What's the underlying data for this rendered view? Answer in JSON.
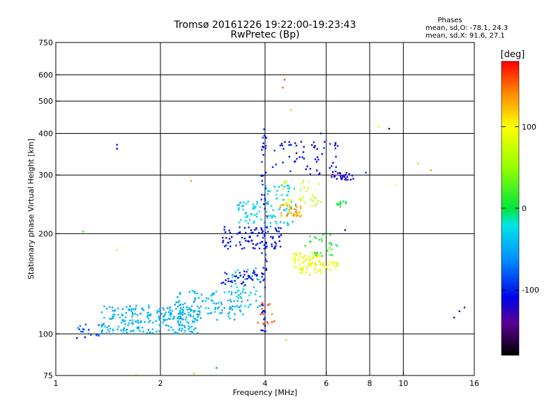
{
  "chart_data": {
    "type": "scatter",
    "title": "Tromsø 20161226 19:22:00-19:23:43",
    "subtitle": "RwPretec (Bp)",
    "stats": {
      "heading": "Phases",
      "line_o": "mean, sd,O: -78.1, 24.3",
      "line_x": "mean, sd,X:  91.6, 27.1"
    },
    "xlabel": "Frequency [MHz]",
    "ylabel": "Stationary phase Virtual Height [km]",
    "xscale": "log",
    "yscale": "log",
    "xlim": [
      1,
      16
    ],
    "ylim": [
      75,
      750
    ],
    "x_ticks": [
      {
        "value": 1,
        "label": "1"
      },
      {
        "value": 2,
        "label": "2"
      },
      {
        "value": 4,
        "label": "4"
      },
      {
        "value": 6,
        "label": "6"
      },
      {
        "value": 8,
        "label": "8"
      },
      {
        "value": 10,
        "label": "10"
      },
      {
        "value": 16,
        "label": "16"
      }
    ],
    "x_grid": [
      2,
      4,
      6,
      8,
      10
    ],
    "y_ticks": [
      {
        "value": 75,
        "label": "75"
      },
      {
        "value": 100,
        "label": "100"
      },
      {
        "value": 200,
        "label": "200"
      },
      {
        "value": 300,
        "label": "300"
      },
      {
        "value": 400,
        "label": "400"
      },
      {
        "value": 500,
        "label": "500"
      },
      {
        "value": 600,
        "label": "600"
      },
      {
        "value": 750,
        "label": "750"
      }
    ],
    "y_grid": [
      100,
      200,
      300,
      400,
      500,
      600
    ],
    "colorbar": {
      "unit": "[deg]",
      "range": [
        -180,
        180
      ],
      "ticks": [
        {
          "value": 100,
          "label": "100"
        },
        {
          "value": 0,
          "label": "0"
        },
        {
          "value": -100,
          "label": "-100"
        }
      ]
    },
    "clusters": [
      {
        "x": [
          1.35,
          2.6
        ],
        "y": [
          100,
          122
        ],
        "phase": [
          -50,
          -40
        ],
        "n": 260
      },
      {
        "x": [
          1.15,
          1.4
        ],
        "y": [
          97,
          108
        ],
        "phase": [
          -110,
          -60
        ],
        "n": 18
      },
      {
        "x": [
          2.2,
          3.5
        ],
        "y": [
          110,
          135
        ],
        "phase": [
          -60,
          -30
        ],
        "n": 110
      },
      {
        "x": [
          3.2,
          3.9
        ],
        "y": [
          120,
          160
        ],
        "phase": [
          -50,
          -20
        ],
        "n": 40
      },
      {
        "x": [
          3.3,
          3.9
        ],
        "y": [
          215,
          250
        ],
        "phase": [
          -40,
          -25
        ],
        "n": 40
      },
      {
        "x": [
          3.9,
          4.05
        ],
        "y": [
          100,
          420
        ],
        "phase": [
          -115,
          -90
        ],
        "n": 70
      },
      {
        "x": [
          3.0,
          4.5
        ],
        "y": [
          180,
          210
        ],
        "phase": [
          -115,
          -95
        ],
        "n": 90
      },
      {
        "x": [
          3.0,
          3.9
        ],
        "y": [
          140,
          155
        ],
        "phase": [
          -110,
          -95
        ],
        "n": 40
      },
      {
        "x": [
          4.0,
          4.9
        ],
        "y": [
          210,
          280
        ],
        "phase": [
          -45,
          -20
        ],
        "n": 60
      },
      {
        "x": [
          4.4,
          5.1
        ],
        "y": [
          225,
          245
        ],
        "phase": [
          110,
          145
        ],
        "n": 40
      },
      {
        "x": [
          4.8,
          5.8
        ],
        "y": [
          150,
          175
        ],
        "phase": [
          80,
          110
        ],
        "n": 80
      },
      {
        "x": [
          5.8,
          6.5
        ],
        "y": [
          155,
          165
        ],
        "phase": [
          80,
          100
        ],
        "n": 20
      },
      {
        "x": [
          4.2,
          6.5
        ],
        "y": [
          300,
          380
        ],
        "phase": [
          -120,
          -95
        ],
        "n": 60
      },
      {
        "x": [
          6.2,
          7.2
        ],
        "y": [
          290,
          305
        ],
        "phase": [
          -130,
          -100
        ],
        "n": 30
      },
      {
        "x": [
          6.4,
          6.9
        ],
        "y": [
          240,
          250
        ],
        "phase": [
          -5,
          10
        ],
        "n": 10
      },
      {
        "x": [
          5.2,
          6.5
        ],
        "y": [
          170,
          200
        ],
        "phase": [
          -10,
          30
        ],
        "n": 30
      },
      {
        "x": [
          4.5,
          5.8
        ],
        "y": [
          240,
          290
        ],
        "phase": [
          60,
          90
        ],
        "n": 35
      },
      {
        "x": [
          3.8,
          4.3
        ],
        "y": [
          105,
          125
        ],
        "phase": [
          140,
          165
        ],
        "n": 15
      }
    ],
    "points": [
      {
        "x": 1.5,
        "y": 370,
        "phase": -105
      },
      {
        "x": 1.5,
        "y": 360,
        "phase": -110
      },
      {
        "x": 1.2,
        "y": 203,
        "phase": 15
      },
      {
        "x": 1.5,
        "y": 179,
        "phase": 110
      },
      {
        "x": 2.45,
        "y": 288,
        "phase": 135
      },
      {
        "x": 4.75,
        "y": 470,
        "phase": 120
      },
      {
        "x": 4.5,
        "y": 549,
        "phase": 150
      },
      {
        "x": 4.55,
        "y": 580,
        "phase": 160
      },
      {
        "x": 9.1,
        "y": 413,
        "phase": -160
      },
      {
        "x": 8.5,
        "y": 420,
        "phase": 110
      },
      {
        "x": 11.0,
        "y": 325,
        "phase": 120
      },
      {
        "x": 12.0,
        "y": 310,
        "phase": 140
      },
      {
        "x": 14.5,
        "y": 117,
        "phase": -110
      },
      {
        "x": 14.0,
        "y": 112,
        "phase": -105
      },
      {
        "x": 15.0,
        "y": 120,
        "phase": -100
      },
      {
        "x": 2.9,
        "y": 79,
        "phase": -60
      },
      {
        "x": 1.7,
        "y": 75,
        "phase": 110
      },
      {
        "x": 2.5,
        "y": 76,
        "phase": 120
      },
      {
        "x": 9.5,
        "y": 280,
        "phase": 100
      },
      {
        "x": 6.8,
        "y": 205,
        "phase": -110
      },
      {
        "x": 5.8,
        "y": 400,
        "phase": -100
      },
      {
        "x": 4.6,
        "y": 96,
        "phase": 60
      },
      {
        "x": 7.8,
        "y": 305,
        "phase": -90
      }
    ]
  }
}
